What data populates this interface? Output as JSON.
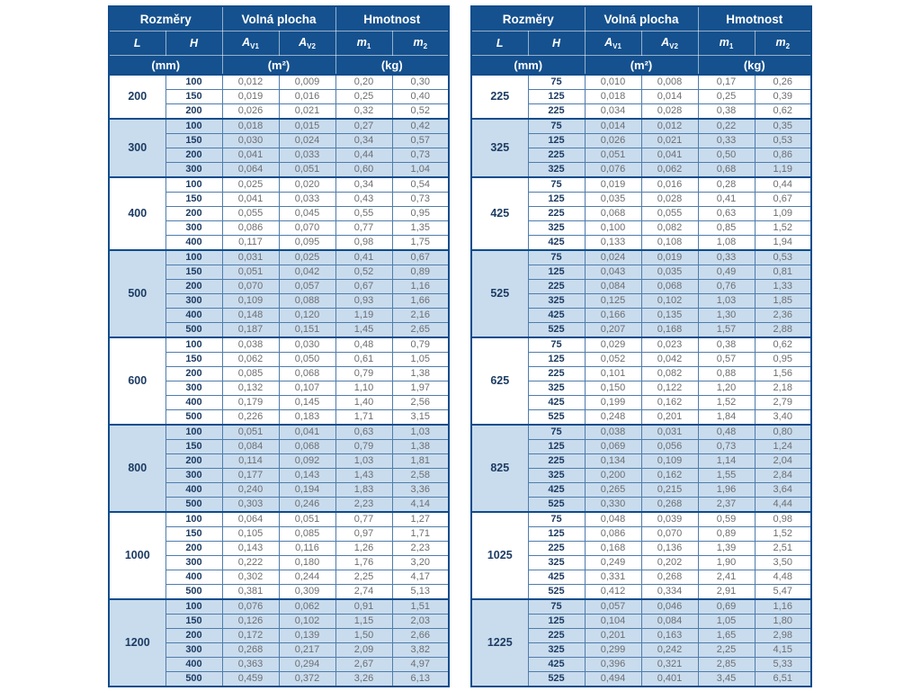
{
  "colors": {
    "header_bg": "#15518e",
    "frame": "#0f4c8c",
    "grid": "#4f7cab",
    "stripe_bg": "#c9dcee",
    "text_dark": "#1d3c63",
    "text_grey": "#6d6e71"
  },
  "header": {
    "groups": [
      "Rozměry",
      "Volná plocha",
      "Hmotnost"
    ],
    "columns": [
      {
        "base": "L",
        "sub": ""
      },
      {
        "base": "H",
        "sub": ""
      },
      {
        "base": "A",
        "sub": "V1"
      },
      {
        "base": "A",
        "sub": "V2"
      },
      {
        "base": "m",
        "sub": "1"
      },
      {
        "base": "m",
        "sub": "2"
      }
    ],
    "units": [
      "(mm)",
      "(m²)",
      "(kg)"
    ]
  },
  "tables": [
    {
      "name": "dimensions-table-left",
      "groups": [
        {
          "L": "200",
          "rows": [
            [
              "100",
              "0,012",
              "0,009",
              "0,20",
              "0,30"
            ],
            [
              "150",
              "0,019",
              "0,016",
              "0,25",
              "0,40"
            ],
            [
              "200",
              "0,026",
              "0,021",
              "0,32",
              "0,52"
            ]
          ]
        },
        {
          "L": "300",
          "rows": [
            [
              "100",
              "0,018",
              "0,015",
              "0,27",
              "0,42"
            ],
            [
              "150",
              "0,030",
              "0,024",
              "0,34",
              "0,57"
            ],
            [
              "200",
              "0,041",
              "0,033",
              "0,44",
              "0,73"
            ],
            [
              "300",
              "0,064",
              "0,051",
              "0,60",
              "1,04"
            ]
          ]
        },
        {
          "L": "400",
          "rows": [
            [
              "100",
              "0,025",
              "0,020",
              "0,34",
              "0,54"
            ],
            [
              "150",
              "0,041",
              "0,033",
              "0,43",
              "0,73"
            ],
            [
              "200",
              "0,055",
              "0,045",
              "0,55",
              "0,95"
            ],
            [
              "300",
              "0,086",
              "0,070",
              "0,77",
              "1,35"
            ],
            [
              "400",
              "0,117",
              "0,095",
              "0,98",
              "1,75"
            ]
          ]
        },
        {
          "L": "500",
          "rows": [
            [
              "100",
              "0,031",
              "0,025",
              "0,41",
              "0,67"
            ],
            [
              "150",
              "0,051",
              "0,042",
              "0,52",
              "0,89"
            ],
            [
              "200",
              "0,070",
              "0,057",
              "0,67",
              "1,16"
            ],
            [
              "300",
              "0,109",
              "0,088",
              "0,93",
              "1,66"
            ],
            [
              "400",
              "0,148",
              "0,120",
              "1,19",
              "2,16"
            ],
            [
              "500",
              "0,187",
              "0,151",
              "1,45",
              "2,65"
            ]
          ]
        },
        {
          "L": "600",
          "rows": [
            [
              "100",
              "0,038",
              "0,030",
              "0,48",
              "0,79"
            ],
            [
              "150",
              "0,062",
              "0,050",
              "0,61",
              "1,05"
            ],
            [
              "200",
              "0,085",
              "0,068",
              "0,79",
              "1,38"
            ],
            [
              "300",
              "0,132",
              "0,107",
              "1,10",
              "1,97"
            ],
            [
              "400",
              "0,179",
              "0,145",
              "1,40",
              "2,56"
            ],
            [
              "500",
              "0,226",
              "0,183",
              "1,71",
              "3,15"
            ]
          ]
        },
        {
          "L": "800",
          "rows": [
            [
              "100",
              "0,051",
              "0,041",
              "0,63",
              "1,03"
            ],
            [
              "150",
              "0,084",
              "0,068",
              "0,79",
              "1,38"
            ],
            [
              "200",
              "0,114",
              "0,092",
              "1,03",
              "1,81"
            ],
            [
              "300",
              "0,177",
              "0,143",
              "1,43",
              "2,58"
            ],
            [
              "400",
              "0,240",
              "0,194",
              "1,83",
              "3,36"
            ],
            [
              "500",
              "0,303",
              "0,246",
              "2,23",
              "4,14"
            ]
          ]
        },
        {
          "L": "1000",
          "rows": [
            [
              "100",
              "0,064",
              "0,051",
              "0,77",
              "1,27"
            ],
            [
              "150",
              "0,105",
              "0,085",
              "0,97",
              "1,71"
            ],
            [
              "200",
              "0,143",
              "0,116",
              "1,26",
              "2,23"
            ],
            [
              "300",
              "0,222",
              "0,180",
              "1,76",
              "3,20"
            ],
            [
              "400",
              "0,302",
              "0,244",
              "2,25",
              "4,17"
            ],
            [
              "500",
              "0,381",
              "0,309",
              "2,74",
              "5,13"
            ]
          ]
        },
        {
          "L": "1200",
          "rows": [
            [
              "100",
              "0,076",
              "0,062",
              "0,91",
              "1,51"
            ],
            [
              "150",
              "0,126",
              "0,102",
              "1,15",
              "2,03"
            ],
            [
              "200",
              "0,172",
              "0,139",
              "1,50",
              "2,66"
            ],
            [
              "300",
              "0,268",
              "0,217",
              "2,09",
              "3,82"
            ],
            [
              "400",
              "0,363",
              "0,294",
              "2,67",
              "4,97"
            ],
            [
              "500",
              "0,459",
              "0,372",
              "3,26",
              "6,13"
            ]
          ]
        }
      ]
    },
    {
      "name": "dimensions-table-right",
      "groups": [
        {
          "L": "225",
          "rows": [
            [
              "75",
              "0,010",
              "0,008",
              "0,17",
              "0,26"
            ],
            [
              "125",
              "0,018",
              "0,014",
              "0,25",
              "0,39"
            ],
            [
              "225",
              "0,034",
              "0,028",
              "0,38",
              "0,62"
            ]
          ]
        },
        {
          "L": "325",
          "rows": [
            [
              "75",
              "0,014",
              "0,012",
              "0,22",
              "0,35"
            ],
            [
              "125",
              "0,026",
              "0,021",
              "0,33",
              "0,53"
            ],
            [
              "225",
              "0,051",
              "0,041",
              "0,50",
              "0,86"
            ],
            [
              "325",
              "0,076",
              "0,062",
              "0,68",
              "1,19"
            ]
          ]
        },
        {
          "L": "425",
          "rows": [
            [
              "75",
              "0,019",
              "0,016",
              "0,28",
              "0,44"
            ],
            [
              "125",
              "0,035",
              "0,028",
              "0,41",
              "0,67"
            ],
            [
              "225",
              "0,068",
              "0,055",
              "0,63",
              "1,09"
            ],
            [
              "325",
              "0,100",
              "0,082",
              "0,85",
              "1,52"
            ],
            [
              "425",
              "0,133",
              "0,108",
              "1,08",
              "1,94"
            ]
          ]
        },
        {
          "L": "525",
          "rows": [
            [
              "75",
              "0,024",
              "0,019",
              "0,33",
              "0,53"
            ],
            [
              "125",
              "0,043",
              "0,035",
              "0,49",
              "0,81"
            ],
            [
              "225",
              "0,084",
              "0,068",
              "0,76",
              "1,33"
            ],
            [
              "325",
              "0,125",
              "0,102",
              "1,03",
              "1,85"
            ],
            [
              "425",
              "0,166",
              "0,135",
              "1,30",
              "2,36"
            ],
            [
              "525",
              "0,207",
              "0,168",
              "1,57",
              "2,88"
            ]
          ]
        },
        {
          "L": "625",
          "rows": [
            [
              "75",
              "0,029",
              "0,023",
              "0,38",
              "0,62"
            ],
            [
              "125",
              "0,052",
              "0,042",
              "0,57",
              "0,95"
            ],
            [
              "225",
              "0,101",
              "0,082",
              "0,88",
              "1,56"
            ],
            [
              "325",
              "0,150",
              "0,122",
              "1,20",
              "2,18"
            ],
            [
              "425",
              "0,199",
              "0,162",
              "1,52",
              "2,79"
            ],
            [
              "525",
              "0,248",
              "0,201",
              "1,84",
              "3,40"
            ]
          ]
        },
        {
          "L": "825",
          "rows": [
            [
              "75",
              "0,038",
              "0,031",
              "0,48",
              "0,80"
            ],
            [
              "125",
              "0,069",
              "0,056",
              "0,73",
              "1,24"
            ],
            [
              "225",
              "0,134",
              "0,109",
              "1,14",
              "2,04"
            ],
            [
              "325",
              "0,200",
              "0,162",
              "1,55",
              "2,84"
            ],
            [
              "425",
              "0,265",
              "0,215",
              "1,96",
              "3,64"
            ],
            [
              "525",
              "0,330",
              "0,268",
              "2,37",
              "4,44"
            ]
          ]
        },
        {
          "L": "1025",
          "rows": [
            [
              "75",
              "0,048",
              "0,039",
              "0,59",
              "0,98"
            ],
            [
              "125",
              "0,086",
              "0,070",
              "0,89",
              "1,52"
            ],
            [
              "225",
              "0,168",
              "0,136",
              "1,39",
              "2,51"
            ],
            [
              "325",
              "0,249",
              "0,202",
              "1,90",
              "3,50"
            ],
            [
              "425",
              "0,331",
              "0,268",
              "2,41",
              "4,48"
            ],
            [
              "525",
              "0,412",
              "0,334",
              "2,91",
              "5,47"
            ]
          ]
        },
        {
          "L": "1225",
          "rows": [
            [
              "75",
              "0,057",
              "0,046",
              "0,69",
              "1,16"
            ],
            [
              "125",
              "0,104",
              "0,084",
              "1,05",
              "1,80"
            ],
            [
              "225",
              "0,201",
              "0,163",
              "1,65",
              "2,98"
            ],
            [
              "325",
              "0,299",
              "0,242",
              "2,25",
              "4,15"
            ],
            [
              "425",
              "0,396",
              "0,321",
              "2,85",
              "5,33"
            ],
            [
              "525",
              "0,494",
              "0,401",
              "3,45",
              "6,51"
            ]
          ]
        }
      ]
    }
  ]
}
